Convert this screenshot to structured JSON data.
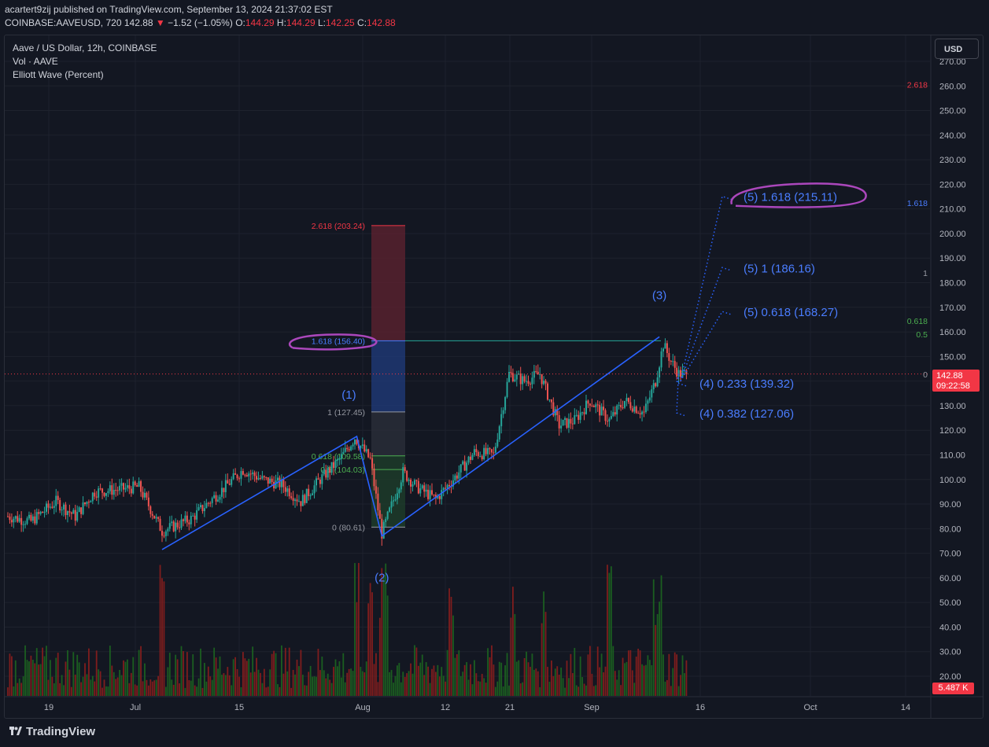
{
  "header": {
    "publisher_line": "acartert9zij published on TradingView.com, September 13, 2024 21:37:02 EST",
    "symbol": "COINBASE:AAVEUSD, 720",
    "last": "142.88",
    "change_arrow": "▼",
    "change": "−1.52 (−1.05%)",
    "o_label": "O:",
    "o": "144.29",
    "h_label": "H:",
    "h": "144.29",
    "l_label": "L:",
    "l": "142.25",
    "c_label": "C:",
    "c": "142.88"
  },
  "legend": {
    "title": "Aave / US Dollar, 12h, COINBASE",
    "vol": "Vol · AAVE",
    "indicator": "Elliott Wave (Percent)"
  },
  "currency_button": "USD",
  "price_tag": {
    "price": "142.88",
    "countdown": "09:22:58"
  },
  "volume_tag": "5.487 K",
  "brand": "TradingView",
  "colors": {
    "background": "#131722",
    "grid": "#1e222d",
    "up": "#26a69a",
    "down": "#ef5350",
    "vol_up": "#1b5e20",
    "vol_down": "#7f1d1d",
    "wave_line": "#2962ff",
    "wave_text": "#4a7dff",
    "fib_red": "#f23645",
    "fib_green": "#4caf50",
    "annotation": "#ab47bc",
    "current_price_line": "#f23645"
  },
  "chart_data": {
    "type": "candlestick",
    "title": "Aave / US Dollar, 12h, COINBASE",
    "y_axis": {
      "ticks": [
        "270.00",
        "260.00",
        "250.00",
        "240.00",
        "230.00",
        "220.00",
        "210.00",
        "200.00",
        "190.00",
        "180.00",
        "170.00",
        "160.00",
        "150.00",
        "140.00",
        "130.00",
        "120.00",
        "110.00",
        "100.00",
        "90.00",
        "80.00",
        "70.00",
        "60.00",
        "50.00",
        "40.00",
        "30.00",
        "20.00"
      ],
      "ylim": [
        17,
        272
      ]
    },
    "x_axis": {
      "ticks": [
        "19",
        "Jul",
        "15",
        "Aug",
        "12",
        "21",
        "Sep",
        "16",
        "Oct",
        "14"
      ]
    },
    "price_waypoints": [
      {
        "t": 0,
        "p": 85
      },
      {
        "t": 12,
        "p": 83
      },
      {
        "t": 25,
        "p": 91
      },
      {
        "t": 35,
        "p": 85
      },
      {
        "t": 45,
        "p": 95
      },
      {
        "t": 58,
        "p": 96
      },
      {
        "t": 68,
        "p": 97
      },
      {
        "t": 80,
        "p": 79
      },
      {
        "t": 95,
        "p": 84
      },
      {
        "t": 110,
        "p": 95
      },
      {
        "t": 122,
        "p": 104
      },
      {
        "t": 132,
        "p": 100
      },
      {
        "t": 142,
        "p": 98
      },
      {
        "t": 152,
        "p": 91
      },
      {
        "t": 162,
        "p": 100
      },
      {
        "t": 172,
        "p": 108
      },
      {
        "t": 180,
        "p": 117
      },
      {
        "t": 188,
        "p": 108
      },
      {
        "t": 194,
        "p": 78
      },
      {
        "t": 205,
        "p": 103
      },
      {
        "t": 212,
        "p": 97
      },
      {
        "t": 222,
        "p": 92
      },
      {
        "t": 232,
        "p": 101
      },
      {
        "t": 242,
        "p": 111
      },
      {
        "t": 252,
        "p": 110
      },
      {
        "t": 260,
        "p": 143
      },
      {
        "t": 268,
        "p": 140
      },
      {
        "t": 276,
        "p": 143
      },
      {
        "t": 286,
        "p": 122
      },
      {
        "t": 294,
        "p": 124
      },
      {
        "t": 302,
        "p": 132
      },
      {
        "t": 312,
        "p": 124
      },
      {
        "t": 320,
        "p": 132
      },
      {
        "t": 330,
        "p": 127
      },
      {
        "t": 336,
        "p": 140
      },
      {
        "t": 340,
        "p": 155
      },
      {
        "t": 344,
        "p": 148
      },
      {
        "t": 348,
        "p": 143
      },
      {
        "t": 352,
        "p": 142.88
      }
    ],
    "last_price": 142.88,
    "elliott_wave": {
      "points": [
        {
          "label": "",
          "t": 80,
          "p": 71.5
        },
        {
          "label": "(1)",
          "t": 181,
          "p": 117.5
        },
        {
          "label": "(2)",
          "t": 194,
          "p": 77
        },
        {
          "label": "(3)",
          "t": 338,
          "p": 158
        }
      ]
    },
    "fib_retracement": {
      "levels": [
        {
          "label": "2.618 (203.24)",
          "value": 203.24
        },
        {
          "label": "1.618 (156.40)",
          "value": 156.4
        },
        {
          "label": "1 (127.45)",
          "value": 127.45
        },
        {
          "label": "0.618 (109.58)",
          "value": 109.58
        },
        {
          "label": "0.5 (104.03)",
          "value": 104.03
        },
        {
          "label": "0 (80.61)",
          "value": 80.61
        }
      ]
    },
    "projections": [
      {
        "label": "(5) 1.618 (215.11)",
        "value": 215.11
      },
      {
        "label": "(5) 1 (186.16)",
        "value": 186.16
      },
      {
        "label": "(5) 0.618 (168.27)",
        "value": 168.27
      },
      {
        "label": "(4) 0.233 (139.32)",
        "value": 139.32
      },
      {
        "label": "(4) 0.382 (127.06)",
        "value": 127.06
      }
    ],
    "right_scale_markers": [
      {
        "label": "2.618",
        "value": 260.5
      },
      {
        "label": "1.618",
        "value": 212.5
      },
      {
        "label": "1",
        "value": 184
      },
      {
        "label": "0.618",
        "value": 164.5
      },
      {
        "label": "0.5",
        "value": 159
      },
      {
        "label": "0",
        "value": 142.8
      }
    ]
  }
}
